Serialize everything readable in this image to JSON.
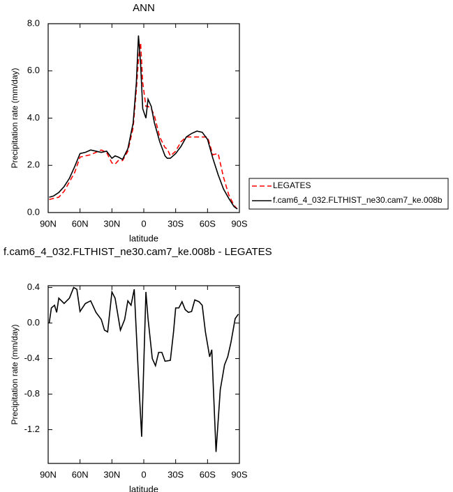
{
  "chart_data": [
    {
      "type": "line",
      "title": "ANN",
      "xlabel": "latitude",
      "ylabel": "Precipitation rate (mm/day)",
      "x": [
        89,
        85,
        80,
        75,
        70,
        65,
        60,
        55,
        50,
        45,
        40,
        35,
        30,
        27,
        24,
        20,
        15,
        10,
        7,
        5,
        3,
        1,
        -2,
        -4,
        -7,
        -10,
        -15,
        -20,
        -22,
        -25,
        -30,
        -35,
        -40,
        -45,
        -50,
        -55,
        -60,
        -65,
        -70,
        -75,
        -80,
        -85,
        -88
      ],
      "series": [
        {
          "name": "LEGATES",
          "color": "#ff0000",
          "dash": "dashed",
          "values": [
            0.55,
            0.6,
            0.65,
            0.9,
            1.3,
            1.7,
            2.35,
            2.4,
            2.45,
            2.55,
            2.65,
            2.55,
            2.1,
            2.05,
            2.2,
            2.2,
            2.6,
            3.6,
            5.2,
            6.5,
            7.2,
            5.5,
            4.5,
            4.5,
            4.4,
            4.1,
            3.2,
            2.75,
            2.7,
            2.4,
            2.6,
            3.0,
            3.2,
            3.2,
            3.2,
            3.2,
            3.2,
            2.45,
            2.5,
            1.5,
            0.75,
            0.3,
            0.15
          ]
        },
        {
          "name": "f.cam6_4_032.FLTHIST_ne30.cam7_ke.008b",
          "color": "#000000",
          "dash": "solid",
          "values": [
            0.65,
            0.7,
            0.85,
            1.1,
            1.45,
            1.95,
            2.5,
            2.55,
            2.65,
            2.6,
            2.55,
            2.6,
            2.3,
            2.4,
            2.35,
            2.25,
            2.7,
            3.8,
            5.5,
            7.5,
            6.3,
            4.4,
            4.0,
            4.8,
            4.5,
            3.8,
            3.0,
            2.4,
            2.3,
            2.3,
            2.5,
            2.8,
            3.2,
            3.35,
            3.45,
            3.4,
            3.1,
            2.3,
            1.6,
            1.0,
            0.6,
            0.25,
            0.15
          ]
        }
      ],
      "xlim": [
        90,
        -90
      ],
      "xticks": [
        {
          "value": 90,
          "label": "90N"
        },
        {
          "value": 60,
          "label": "60N"
        },
        {
          "value": 30,
          "label": "30N"
        },
        0,
        {
          "value": -30,
          "label": "30S"
        },
        {
          "value": -60,
          "label": "60S"
        },
        {
          "value": -90,
          "label": "90S"
        }
      ],
      "ylim": [
        0,
        8
      ],
      "yticks": [
        {
          "value": 0,
          "label": "0.0"
        },
        {
          "value": 2,
          "label": "2.0"
        },
        {
          "value": 4,
          "label": "4.0"
        },
        {
          "value": 6,
          "label": "6.0"
        },
        {
          "value": 8,
          "label": "8.0"
        }
      ],
      "legend": "right"
    },
    {
      "type": "line",
      "title": "f.cam6_4_032.FLTHIST_ne30.cam7_ke.008b - LEGATES",
      "xlabel": "latitude",
      "ylabel": "Precipitation rate (mm/day)",
      "x": [
        89,
        87,
        84,
        82,
        80,
        75,
        70,
        66,
        63,
        60,
        55,
        50,
        45,
        40,
        37,
        34,
        30,
        27,
        22,
        18,
        15,
        12,
        9,
        5,
        2,
        -2,
        -4,
        -8,
        -11,
        -14,
        -17,
        -20,
        -25,
        -28,
        -30,
        -33,
        -36,
        -39,
        -42,
        -45,
        -48,
        -52,
        -55,
        -58,
        -62,
        -64,
        -68,
        -72,
        -76,
        -79,
        -82,
        -86,
        -89
      ],
      "values": [
        0.0,
        0.17,
        0.2,
        0.12,
        0.28,
        0.22,
        0.28,
        0.4,
        0.38,
        0.13,
        0.22,
        0.25,
        0.12,
        0.04,
        -0.08,
        -0.1,
        0.35,
        0.28,
        -0.08,
        0.04,
        0.25,
        0.2,
        0.38,
        -0.6,
        -1.28,
        0.35,
        0.05,
        -0.4,
        -0.48,
        -0.33,
        -0.33,
        -0.43,
        -0.42,
        -0.1,
        0.17,
        0.17,
        0.24,
        0.15,
        0.12,
        0.13,
        0.26,
        0.24,
        0.2,
        -0.1,
        -0.38,
        -0.3,
        -1.45,
        -0.75,
        -0.47,
        -0.38,
        -0.22,
        0.05,
        0.1
      ],
      "color": "#000000",
      "xlim": [
        90,
        -90
      ],
      "xticks": [
        {
          "value": 90,
          "label": "90N"
        },
        {
          "value": 60,
          "label": "60N"
        },
        {
          "value": 30,
          "label": "30N"
        },
        0,
        {
          "value": -30,
          "label": "30S"
        },
        {
          "value": -60,
          "label": "60S"
        },
        {
          "value": -90,
          "label": "90S"
        }
      ],
      "ylim": [
        -1.58,
        0.42
      ],
      "yticks": [
        0.4,
        {
          "value": 0,
          "label": "0.0"
        },
        -0.4,
        -0.8,
        -1.2
      ]
    }
  ]
}
